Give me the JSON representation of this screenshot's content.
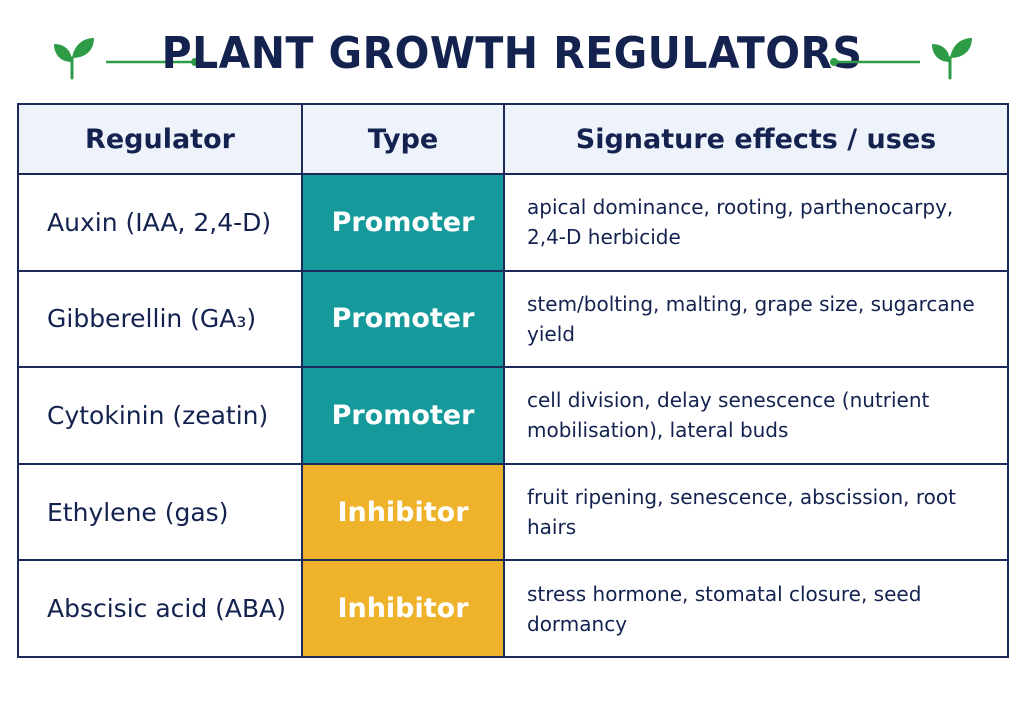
{
  "title": "PLANT GROWTH REGULATORS",
  "colors": {
    "navy": "#13224f",
    "promoter": "#16999b",
    "inhibitor": "#eeb32a",
    "header_bg": "#eef2fb",
    "leaf_green": "#2e9b47"
  },
  "icons": {
    "left": "leaf-sprout-icon",
    "right": "leaf-sprout-icon"
  },
  "table": {
    "headers": [
      "Regulator",
      "Type",
      "Signature effects / uses"
    ],
    "rows": [
      {
        "regulator": "Auxin (IAA, 2,4-D)",
        "type": "Promoter",
        "effects": "apical dominance, rooting, parthenocarpy, 2,4-D herbicide"
      },
      {
        "regulator": "Gibberellin (GA₃)",
        "type": "Promoter",
        "effects": "stem/bolting, malting, grape size, sugarcane yield"
      },
      {
        "regulator": "Cytokinin (zeatin)",
        "type": "Promoter",
        "effects": "cell division, delay senescence (nutrient mobilisation), lateral buds"
      },
      {
        "regulator": "Ethylene (gas)",
        "type": "Inhibitor",
        "effects": "fruit ripening, senescence, abscission, root hairs"
      },
      {
        "regulator": "Abscisic acid (ABA)",
        "type": "Inhibitor",
        "effects": "stress hormone, stomatal closure, seed dormancy"
      }
    ]
  }
}
